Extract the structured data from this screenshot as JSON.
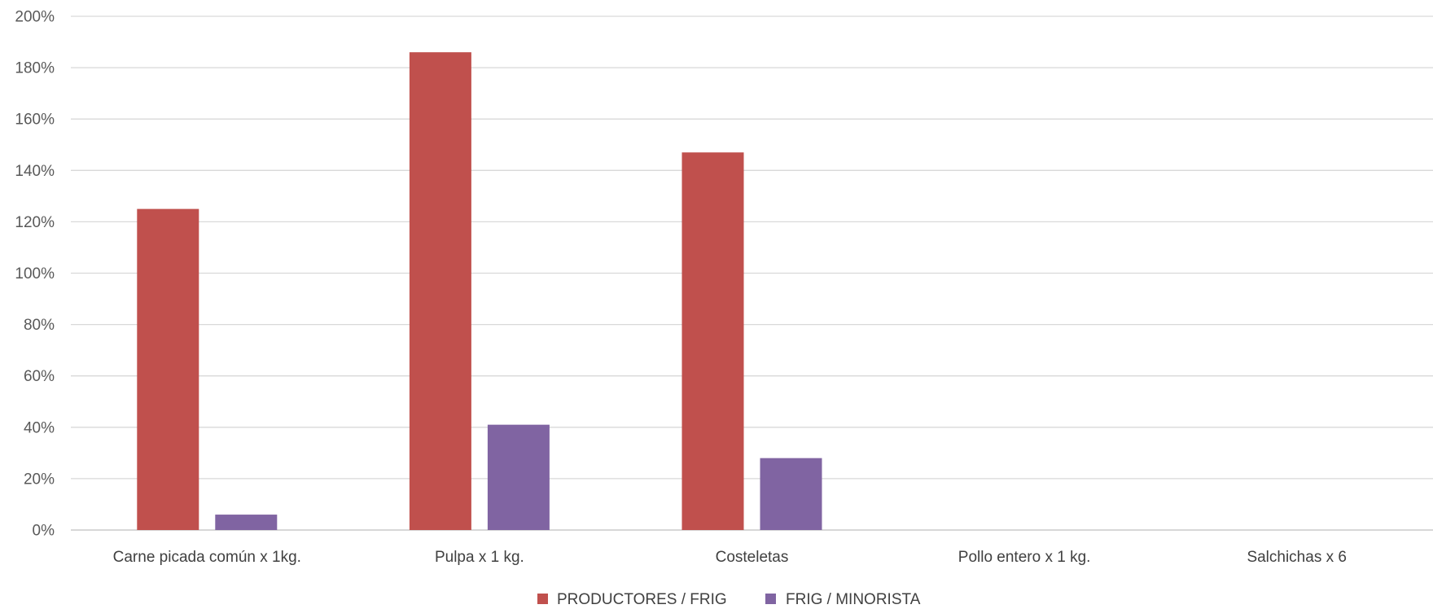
{
  "chart_data": {
    "type": "bar",
    "title": "",
    "xlabel": "",
    "ylabel": "",
    "ylim": [
      0,
      200
    ],
    "yticks": [
      "0%",
      "20%",
      "40%",
      "60%",
      "80%",
      "100%",
      "120%",
      "140%",
      "160%",
      "180%",
      "200%"
    ],
    "categories": [
      "Carne picada común x 1kg.",
      "Pulpa x 1 kg.",
      "Costeletas",
      "Pollo entero x 1 kg.",
      "Salchichas x 6"
    ],
    "series": [
      {
        "name": "PRODUCTORES / FRIG",
        "color": "#C0504D",
        "values": [
          125,
          186,
          147,
          null,
          null
        ]
      },
      {
        "name": "FRIG / MINORISTA",
        "color": "#8064A2",
        "values": [
          6,
          41,
          28,
          null,
          null
        ]
      }
    ],
    "grid": true,
    "legend": "bottom"
  }
}
